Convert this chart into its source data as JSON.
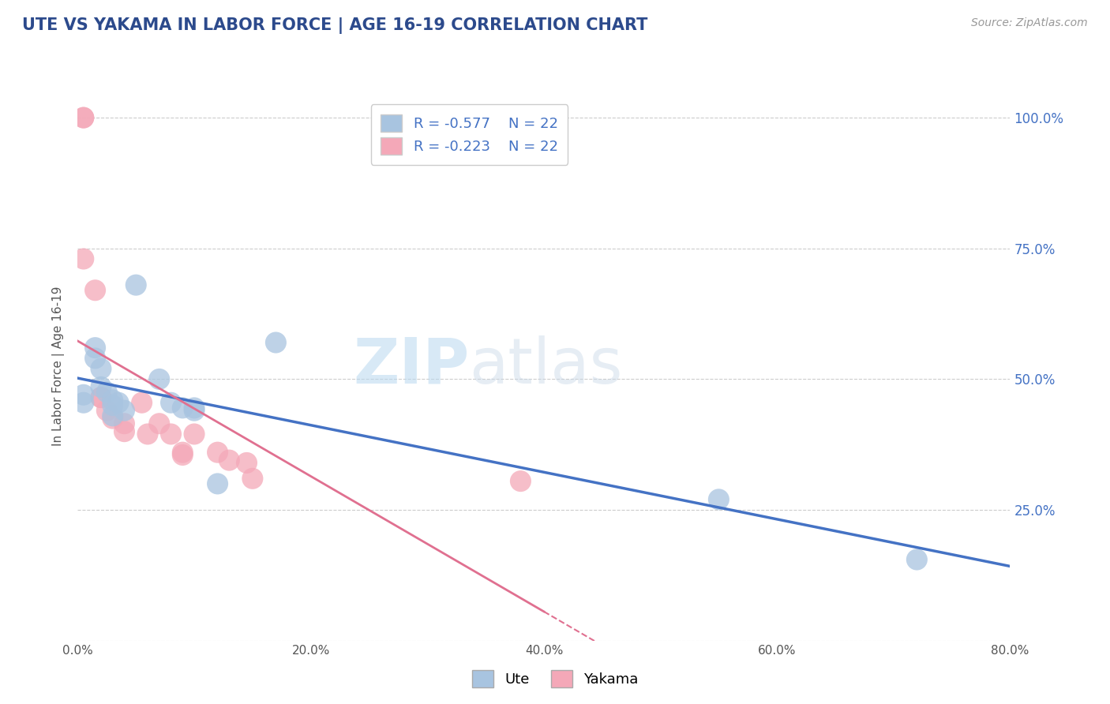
{
  "title": "UTE VS YAKAMA IN LABOR FORCE | AGE 16-19 CORRELATION CHART",
  "source": "Source: ZipAtlas.com",
  "xlabel": "",
  "ylabel": "In Labor Force | Age 16-19",
  "xlim": [
    0.0,
    0.8
  ],
  "ylim": [
    0.0,
    1.05
  ],
  "x_ticks": [
    0.0,
    0.2,
    0.4,
    0.6,
    0.8
  ],
  "x_tick_labels": [
    "0.0%",
    "20.0%",
    "40.0%",
    "60.0%",
    "80.0%"
  ],
  "y_ticks": [
    0.0,
    0.25,
    0.5,
    0.75,
    1.0
  ],
  "y_tick_labels": [
    "",
    "",
    "",
    "",
    ""
  ],
  "right_y_ticks": [
    0.0,
    0.25,
    0.5,
    0.75,
    1.0
  ],
  "right_y_tick_labels": [
    "",
    "25.0%",
    "50.0%",
    "75.0%",
    "100.0%"
  ],
  "ute_color": "#a8c4e0",
  "yakama_color": "#f4a8b8",
  "ute_line_color": "#4472c4",
  "yakama_line_color": "#e07090",
  "ute_r": -0.577,
  "yakama_r": -0.223,
  "ute_n": 22,
  "yakama_n": 22,
  "watermark_zip": "ZIP",
  "watermark_atlas": "atlas",
  "ute_x": [
    0.005,
    0.005,
    0.015,
    0.015,
    0.02,
    0.02,
    0.025,
    0.03,
    0.03,
    0.03,
    0.035,
    0.04,
    0.05,
    0.07,
    0.08,
    0.09,
    0.1,
    0.1,
    0.12,
    0.17,
    0.55,
    0.72
  ],
  "ute_y": [
    0.47,
    0.455,
    0.56,
    0.54,
    0.52,
    0.485,
    0.475,
    0.46,
    0.45,
    0.43,
    0.455,
    0.44,
    0.68,
    0.5,
    0.455,
    0.445,
    0.445,
    0.44,
    0.3,
    0.57,
    0.27,
    0.155
  ],
  "yakama_x": [
    0.005,
    0.005,
    0.005,
    0.015,
    0.02,
    0.02,
    0.025,
    0.03,
    0.04,
    0.04,
    0.055,
    0.06,
    0.07,
    0.08,
    0.09,
    0.09,
    0.1,
    0.12,
    0.13,
    0.145,
    0.15,
    0.38
  ],
  "yakama_y": [
    1.0,
    1.0,
    0.73,
    0.67,
    0.465,
    0.465,
    0.44,
    0.425,
    0.415,
    0.4,
    0.455,
    0.395,
    0.415,
    0.395,
    0.36,
    0.355,
    0.395,
    0.36,
    0.345,
    0.34,
    0.31,
    0.305
  ],
  "bg_color": "#ffffff",
  "grid_color": "#cccccc",
  "title_color": "#2c4a8c",
  "axis_label_color": "#555555",
  "legend_r_color": "#4472c4"
}
